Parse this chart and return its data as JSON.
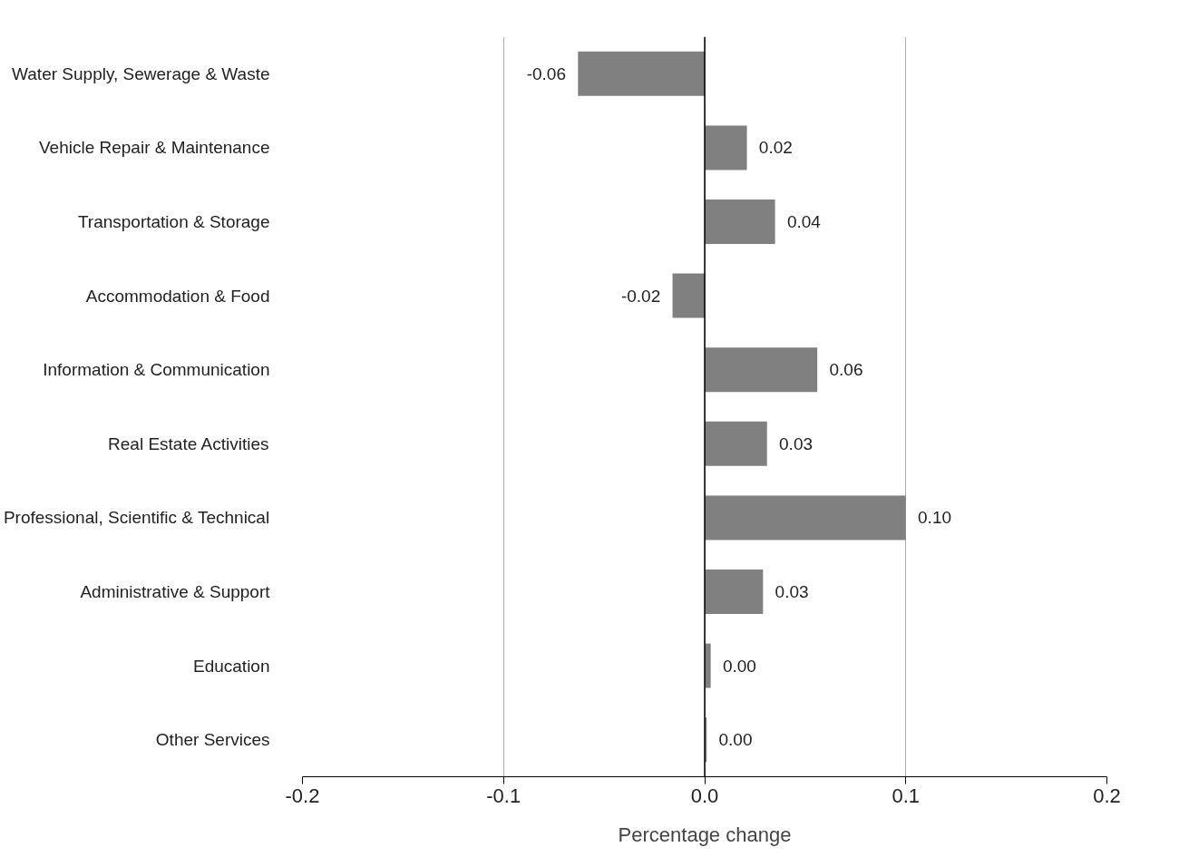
{
  "chart_data": {
    "type": "bar",
    "orientation": "horizontal",
    "xlabel": "Percentage change",
    "categories": [
      "Water Supply, Sewerage & Waste",
      "Vehicle Repair & Maintenance",
      "Transportation & Storage",
      "Accommodation & Food",
      "Information & Communication",
      "Real Estate Activities",
      "Professional, Scientific & Technical",
      "Administrative & Support",
      "Education",
      "Other Services"
    ],
    "values": [
      -0.063,
      0.021,
      0.035,
      -0.016,
      0.056,
      0.031,
      0.1,
      0.029,
      0.003,
      0.001
    ],
    "value_labels": [
      "-0.06",
      "0.02",
      "0.04",
      "-0.02",
      "0.06",
      "0.03",
      "0.10",
      "0.03",
      "0.00",
      "0.00"
    ],
    "color": "#808080",
    "xlim": [
      -0.2,
      0.2
    ],
    "xticks": [
      {
        "value": -0.2,
        "label": "-0.2"
      },
      {
        "value": -0.1,
        "label": "-0.1"
      },
      {
        "value": 0,
        "label": "0.0"
      },
      {
        "value": 0.1,
        "label": "0.1"
      },
      {
        "value": 0.2,
        "label": "0.2"
      }
    ],
    "grid": "x"
  }
}
